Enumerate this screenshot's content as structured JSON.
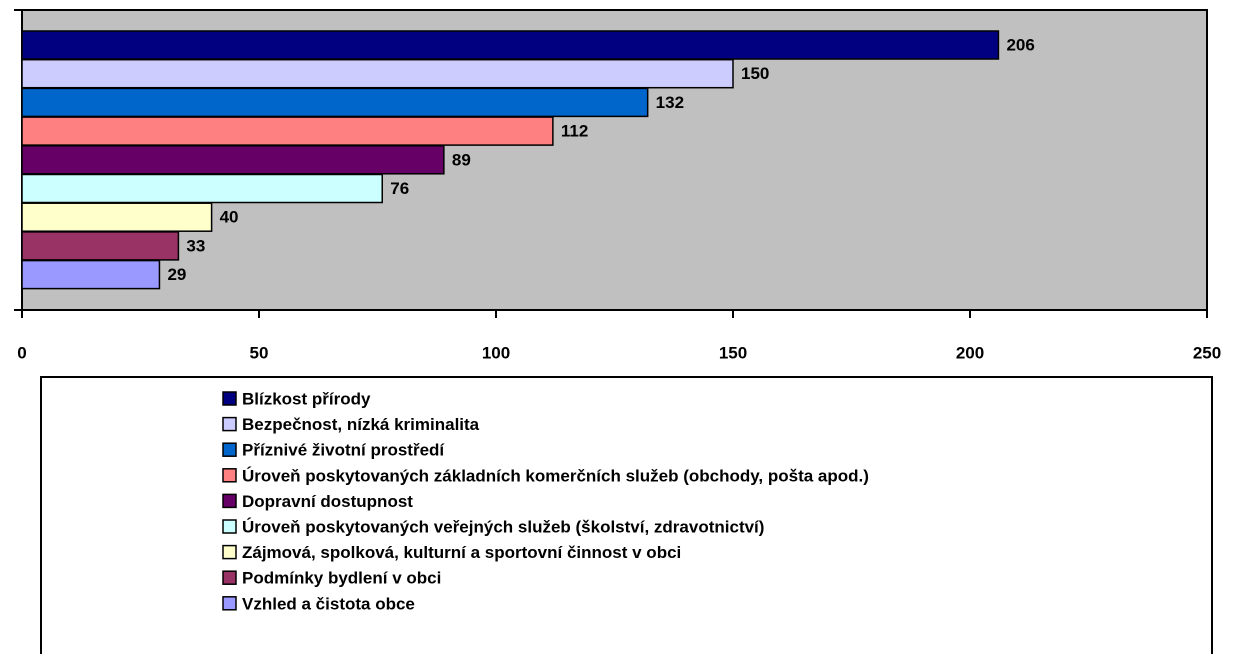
{
  "chart_data": {
    "type": "bar",
    "orientation": "horizontal",
    "categories": [
      "Blízkost přírody",
      "Bezpečnost, nízká kriminalita",
      "Příznivé životní prostředí",
      "Úroveň poskytovaných základních komerčních služeb (obchody, pošta apod.)",
      "Dopravní dostupnost",
      "Úroveň poskytovaných veřejných služeb (školství, zdravotnictví)",
      "Zájmová, spolková, kulturní a sportovní činnost v obci",
      "Podmínky bydlení v obci",
      "Vzhled a čistota obce"
    ],
    "values": [
      206,
      150,
      132,
      112,
      89,
      76,
      40,
      33,
      29
    ],
    "colors": [
      "#000080",
      "#ccccff",
      "#0066cc",
      "#ff8080",
      "#660066",
      "#ccffff",
      "#ffffcc",
      "#993366",
      "#9999ff"
    ],
    "xlim": [
      0,
      250
    ],
    "xticks": [
      0,
      50,
      100,
      150,
      200,
      250
    ],
    "legend": "bottom"
  }
}
